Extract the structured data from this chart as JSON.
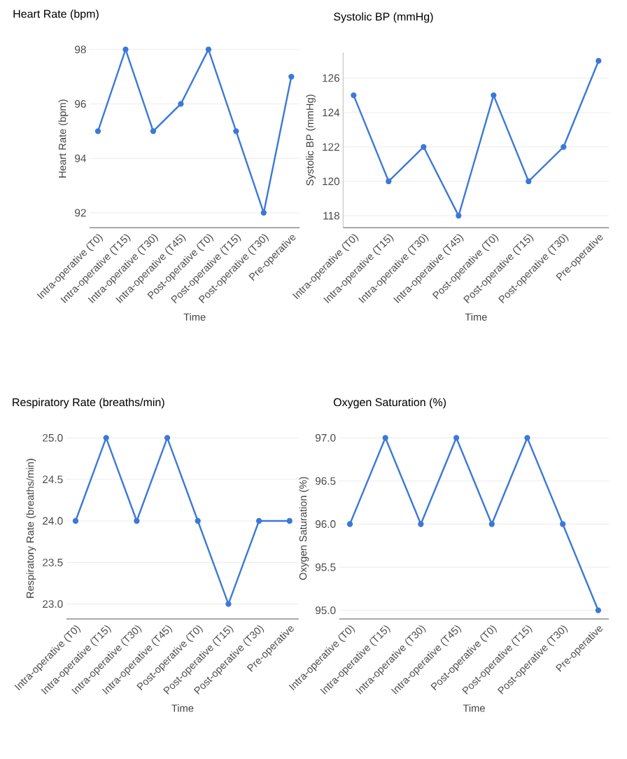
{
  "chart_data": [
    {
      "type": "line",
      "title": "Heart Rate (bpm)",
      "xlabel": "Time",
      "ylabel": "Heart Rate (bpm)",
      "color": "#3c78d8",
      "categories": [
        "Intra-operative (T0)",
        "Intra-operative (T15)",
        "Intra-operative (T30)",
        "Intra-operative (T45)",
        "Post-operative (T0)",
        "Post-operative (T15)",
        "Post-operative (T30)",
        "Pre-operative"
      ],
      "values": [
        95,
        98,
        95,
        96,
        98,
        95,
        92,
        97
      ],
      "ylim": [
        91.45,
        98
      ],
      "yticks": [
        92,
        94,
        96,
        98
      ],
      "grid": "y",
      "marker": "circle",
      "line_style": "solid"
    },
    {
      "type": "line",
      "title": "Systolic BP (mmHg)",
      "xlabel": "Time",
      "ylabel": "Systolic BP (mmHg)",
      "color": "#3c78d8",
      "categories": [
        "Intra-operative (T0)",
        "Intra-operative (T15)",
        "Intra-operative (T30)",
        "Intra-operative (T45)",
        "Post-operative (T0)",
        "Post-operative (T15)",
        "Post-operative (T30)",
        "Pre-operative"
      ],
      "values": [
        125,
        120,
        122,
        118,
        125,
        120,
        122,
        127
      ],
      "ylim": [
        117.3,
        127.5
      ],
      "yticks": [
        118,
        120,
        122,
        124,
        126
      ],
      "grid": "y",
      "marker": "circle",
      "line_style": "solid"
    },
    {
      "type": "line",
      "title": "Respiratory Rate (breaths/min)",
      "xlabel": "Time",
      "ylabel": "Respiratory Rate (breaths/min)",
      "color": "#3c78d8",
      "categories": [
        "Intra-operative (T0)",
        "Intra-operative (T15)",
        "Intra-operative (T30)",
        "Intra-operative (T45)",
        "Post-operative (T0)",
        "Post-operative (T15)",
        "Post-operative (T30)",
        "Pre-operative"
      ],
      "values": [
        24,
        25,
        24,
        25,
        24,
        23,
        24,
        24
      ],
      "ylim": [
        22.82,
        25
      ],
      "yticks": [
        {
          "value": 23,
          "label": "23.0"
        },
        {
          "value": 23.5,
          "label": "23.5"
        },
        {
          "value": 24,
          "label": "24.0"
        },
        {
          "value": 24.5,
          "label": "24.5"
        },
        {
          "value": 25,
          "label": "25.0"
        }
      ],
      "grid": "y",
      "marker": "circle",
      "line_style": "solid"
    },
    {
      "type": "line",
      "title": "Oxygen Saturation (%)",
      "xlabel": "Time",
      "ylabel": "Oxygen Saturation (%)",
      "color": "#3c78d8",
      "categories": [
        "Intra-operative (T0)",
        "Intra-operative (T15)",
        "Intra-operative (T30)",
        "Intra-operative (T45)",
        "Post-operative (T0)",
        "Post-operative (T15)",
        "Post-operative (T30)",
        "Pre-operative"
      ],
      "values": [
        96,
        97,
        96,
        97,
        96,
        97,
        96,
        95
      ],
      "ylim": [
        94.9,
        97
      ],
      "yticks": [
        {
          "value": 95,
          "label": "95.0"
        },
        {
          "value": 95.5,
          "label": "95.5"
        },
        {
          "value": 96,
          "label": "96.0"
        },
        {
          "value": 96.5,
          "label": "96.5"
        },
        {
          "value": 97,
          "label": "97.0"
        }
      ],
      "grid": "y",
      "marker": "circle",
      "line_style": "solid"
    }
  ]
}
